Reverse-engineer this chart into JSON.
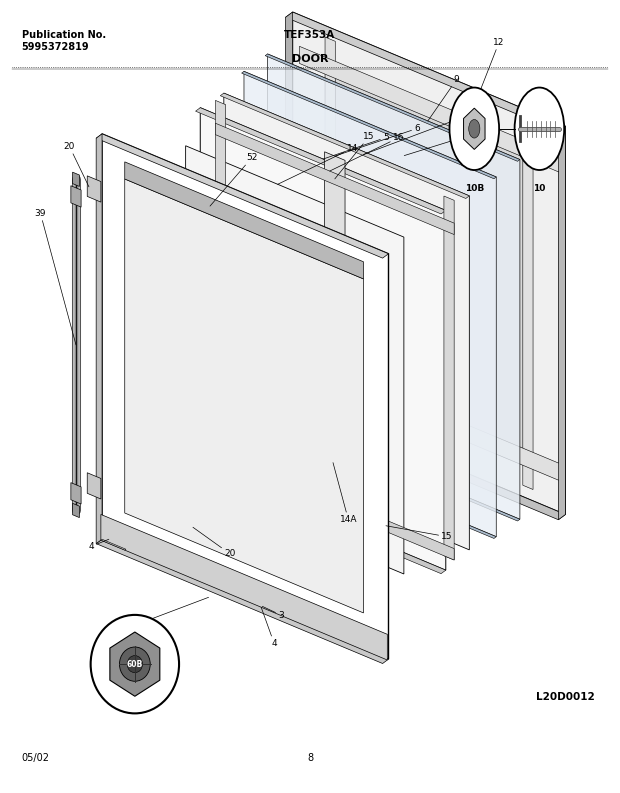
{
  "pub_no": "Publication No.",
  "pub_num": "5995372819",
  "model": "TEF353A",
  "section": "DOOR",
  "footer_date": "05/02",
  "footer_page": "8",
  "diagram_ref": "L20D0012",
  "bg": "#ffffff",
  "fg": "#000000",
  "iso_ox": 0.35,
  "iso_oy": 0.47,
  "iso_ix": 0.055,
  "iso_iy": -0.018,
  "iso_jx": 0.038,
  "iso_jy": 0.022,
  "iso_kx": 0.0,
  "iso_ky": 0.072
}
